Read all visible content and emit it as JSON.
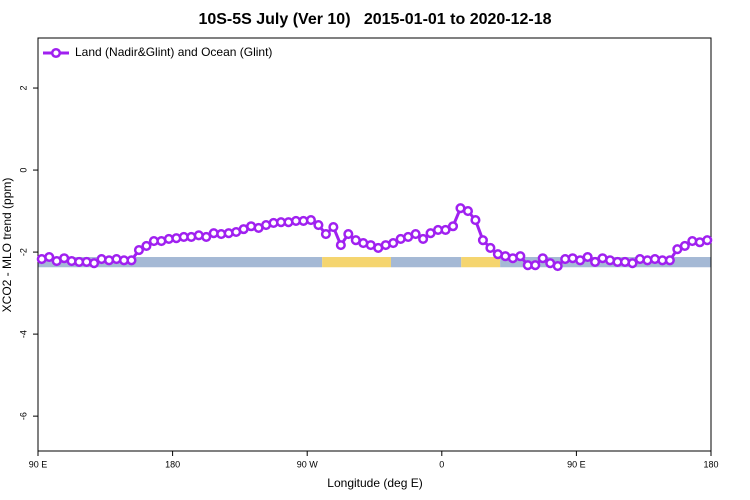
{
  "chart_data": {
    "type": "line",
    "title": "10S-5S July (Ver 10)   2015-01-01 to 2020-12-18",
    "x_label": "Longitude (deg E)",
    "y_label": "XCO2 - MLO trend (ppm)",
    "xlim": [
      90,
      540
    ],
    "ylim": [
      -6.85,
      3.22
    ],
    "xticks": [
      {
        "value": 90,
        "label": "90 E"
      },
      180,
      {
        "value": 270,
        "label": "90 W"
      },
      {
        "value": 360,
        "label": "0"
      },
      {
        "value": 450,
        "label": "90 E"
      },
      {
        "value": 540,
        "label": "180"
      }
    ],
    "yticks": [
      2,
      0,
      -2,
      -4,
      -6
    ],
    "legend_position": "top-left",
    "surface_band": {
      "ylim": [
        -2.37,
        -2.12
      ],
      "segments": [
        {
          "from": 90,
          "to": 280,
          "color": "#a5b9d5"
        },
        {
          "from": 280,
          "to": 326,
          "color": "#f5d56f"
        },
        {
          "from": 326,
          "to": 373,
          "color": "#a5b9d5"
        },
        {
          "from": 373,
          "to": 399,
          "color": "#f5d56f"
        },
        {
          "from": 399,
          "to": 540,
          "color": "#a5b9d5"
        }
      ]
    },
    "x": [
      92.5,
      97.5,
      102.5,
      107.5,
      112.5,
      117.5,
      122.5,
      127.5,
      132.5,
      137.5,
      142.5,
      147.5,
      152.5,
      157.5,
      162.5,
      167.5,
      172.5,
      177.5,
      182.5,
      187.5,
      192.5,
      197.5,
      202.5,
      207.5,
      212.5,
      217.5,
      222.5,
      227.5,
      232.5,
      237.5,
      242.5,
      247.5,
      252.5,
      257.5,
      262.5,
      267.5,
      272.5,
      277.5,
      282.5,
      287.5,
      292.5,
      297.5,
      302.5,
      307.5,
      312.5,
      317.5,
      322.5,
      327.5,
      332.5,
      337.5,
      342.5,
      347.5,
      352.5,
      357.5,
      362.5,
      367.5,
      372.5,
      377.5,
      382.5,
      387.5,
      392.5,
      397.5,
      402.5,
      407.5,
      412.5,
      417.5,
      422.5,
      427.5,
      432.5,
      437.5,
      442.5,
      447.5,
      452.5,
      457.5,
      462.5,
      467.5,
      472.5,
      477.5,
      482.5,
      487.5,
      492.5,
      497.5,
      502.5,
      507.5,
      512.5,
      517.5,
      522.5,
      527.5,
      532.5,
      537.5
    ],
    "series": [
      {
        "name": "Land (Nadir&Glint) and Ocean (Glint)",
        "color": "#a020f0",
        "values": [
          -2.17,
          -2.12,
          -2.22,
          -2.15,
          -2.22,
          -2.24,
          -2.24,
          -2.27,
          -2.17,
          -2.2,
          -2.17,
          -2.2,
          -2.2,
          -1.95,
          -1.85,
          -1.73,
          -1.73,
          -1.68,
          -1.66,
          -1.63,
          -1.63,
          -1.59,
          -1.63,
          -1.54,
          -1.56,
          -1.54,
          -1.51,
          -1.44,
          -1.37,
          -1.41,
          -1.34,
          -1.29,
          -1.27,
          -1.27,
          -1.24,
          -1.24,
          -1.22,
          -1.34,
          -1.56,
          -1.39,
          -1.83,
          -1.56,
          -1.71,
          -1.78,
          -1.83,
          -1.9,
          -1.83,
          -1.78,
          -1.68,
          -1.63,
          -1.56,
          -1.68,
          -1.54,
          -1.46,
          -1.46,
          -1.37,
          -0.93,
          -1.0,
          -1.22,
          -1.71,
          -1.9,
          -2.05,
          -2.1,
          -2.15,
          -2.1,
          -2.32,
          -2.32,
          -2.15,
          -2.27,
          -2.34,
          -2.17,
          -2.15,
          -2.2,
          -2.12,
          -2.24,
          -2.15,
          -2.2,
          -2.24,
          -2.24,
          -2.27,
          -2.17,
          -2.2,
          -2.17,
          -2.2,
          -2.2,
          -1.93,
          -1.85,
          -1.73,
          -1.76,
          -1.71
        ]
      }
    ]
  }
}
